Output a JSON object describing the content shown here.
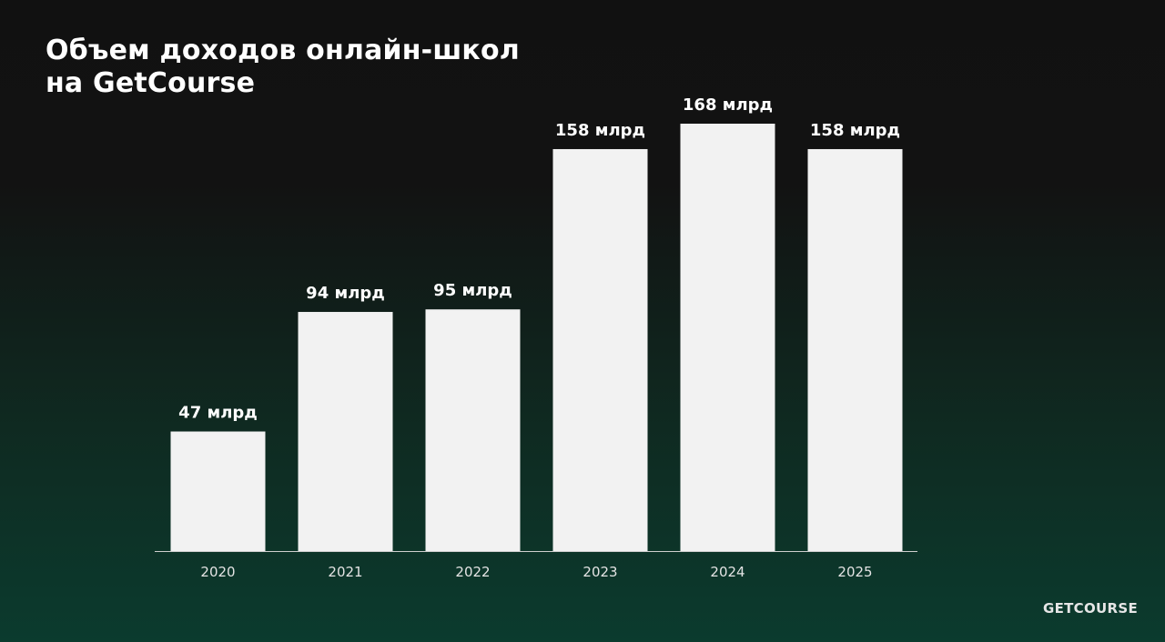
{
  "title": {
    "line1": "Объем доходов онлайн-школ",
    "line2": "на GetCourse"
  },
  "brand": "GETCOURSE",
  "colors": {
    "bar": "#f2f2f2",
    "axis": "#cfcfcf"
  },
  "chart_data": {
    "type": "bar",
    "title": "Объем доходов онлайн-школ на GetCourse",
    "categories": [
      "2020",
      "2021",
      "2022",
      "2023",
      "2024",
      "2025"
    ],
    "values": [
      47,
      94,
      95,
      158,
      168,
      158
    ],
    "value_labels": [
      "47 млрд",
      "94 млрд",
      "95 млрд",
      "158 млрд",
      "168 млрд",
      "158 млрд"
    ],
    "unit": "млрд",
    "xlabel": "",
    "ylabel": "",
    "ylim": [
      0,
      168
    ],
    "grid": false,
    "legend": "none"
  }
}
